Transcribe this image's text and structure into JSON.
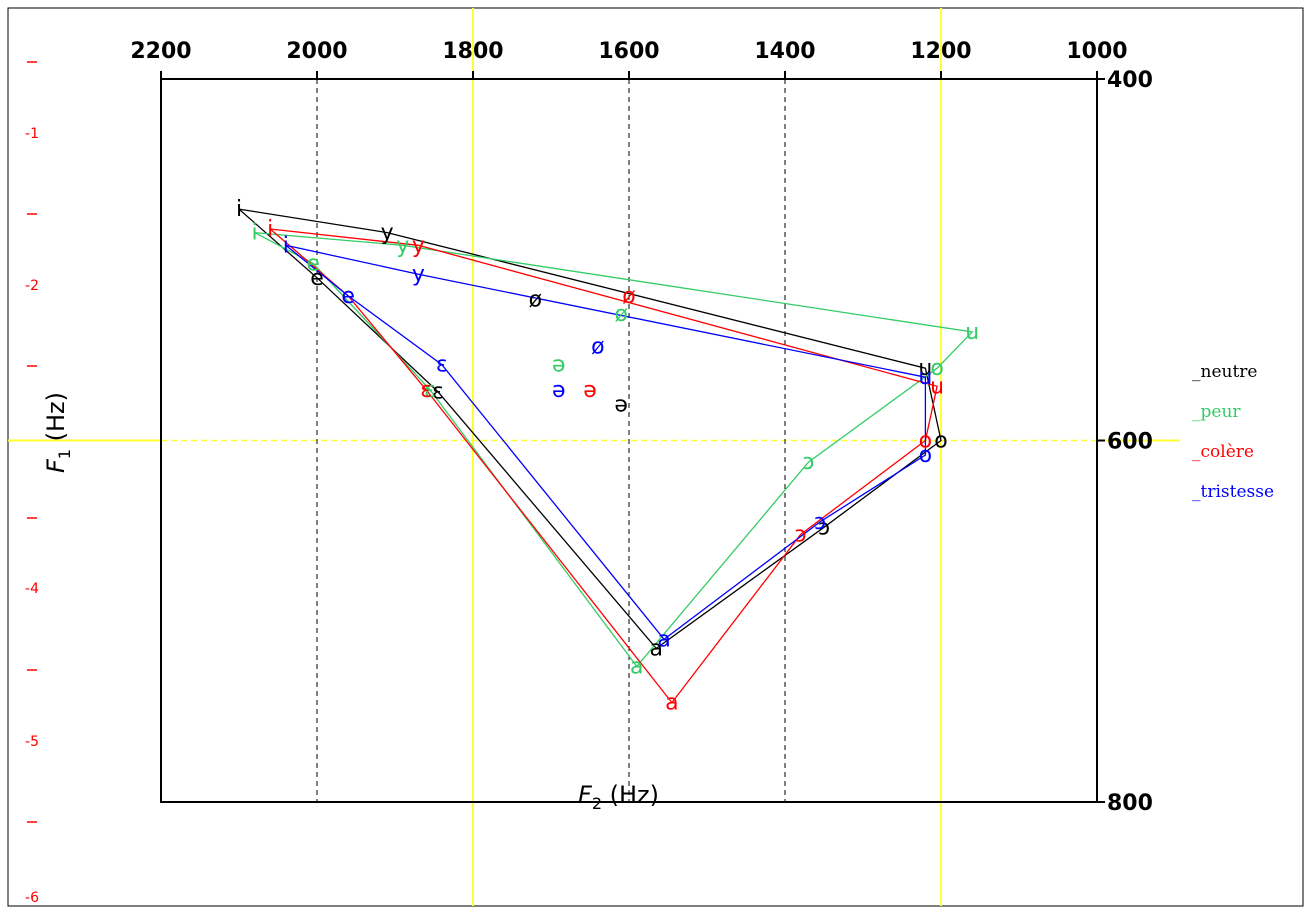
{
  "chart_data": {
    "type": "line",
    "xlabel": "F",
    "xlabel_sub": "2",
    "xlabel_unit": " (Hz)",
    "ylabel": "F",
    "ylabel_sub": "1",
    "ylabel_unit": " (Hz)",
    "xlim": [
      2200,
      1000
    ],
    "ylim": [
      400,
      800
    ],
    "x_ticks": [
      2200,
      2000,
      1800,
      1600,
      1400,
      1200,
      1000
    ],
    "y_ticks": [
      400,
      600,
      800
    ],
    "grid_x_dashed": [
      2000,
      1600,
      1400
    ],
    "crosshair": {
      "x": 1800,
      "x2": 1200,
      "y": 600,
      "color": "#ffff33"
    },
    "left_ruler_labels": [
      "-1",
      "-2",
      "-4",
      "-5",
      "-6"
    ],
    "left_ruler_color": "#ff0000",
    "series": [
      {
        "name": "_neutre",
        "color": "#000000",
        "polygon": [
          {
            "v": "i",
            "x": 2100,
            "y": 472
          },
          {
            "v": "y",
            "x": 1910,
            "y": 485
          },
          {
            "v": "u",
            "x": 1220,
            "y": 560
          },
          {
            "v": "o",
            "x": 1200,
            "y": 600
          },
          {
            "v": "ɔ",
            "x": 1350,
            "y": 648
          },
          {
            "v": "a",
            "x": 1565,
            "y": 715
          },
          {
            "v": "ɛ",
            "x": 1845,
            "y": 573
          },
          {
            "v": "e",
            "x": 2000,
            "y": 510
          },
          {
            "v": "i",
            "x": 2100,
            "y": 472
          }
        ],
        "labels": [
          {
            "v": "ø",
            "x": 1720,
            "y": 522
          },
          {
            "v": "ə",
            "x": 1610,
            "y": 580
          }
        ]
      },
      {
        "name": "_peur",
        "color": "#33cc66",
        "polygon": [
          {
            "v": "i",
            "x": 2080,
            "y": 485
          },
          {
            "v": "y",
            "x": 1890,
            "y": 492
          },
          {
            "v": "u",
            "x": 1160,
            "y": 540
          },
          {
            "v": "o",
            "x": 1205,
            "y": 560
          },
          {
            "v": "ɔ",
            "x": 1370,
            "y": 612
          },
          {
            "v": "a",
            "x": 1590,
            "y": 725
          },
          {
            "v": "ɛ",
            "x": 1855,
            "y": 572
          },
          {
            "v": "e",
            "x": 2005,
            "y": 502
          },
          {
            "v": "i",
            "x": 2080,
            "y": 485
          }
        ],
        "labels": [
          {
            "v": "ø",
            "x": 1610,
            "y": 530
          },
          {
            "v": "ə",
            "x": 1690,
            "y": 558
          }
        ]
      },
      {
        "name": "_colère",
        "color": "#ff0000",
        "polygon": [
          {
            "v": "i",
            "x": 2060,
            "y": 483
          },
          {
            "v": "y",
            "x": 1870,
            "y": 492
          },
          {
            "v": "u",
            "x": 1205,
            "y": 570
          },
          {
            "v": "o",
            "x": 1220,
            "y": 600
          },
          {
            "v": "ɔ",
            "x": 1380,
            "y": 652
          },
          {
            "v": "a",
            "x": 1545,
            "y": 745
          },
          {
            "v": "ɛ",
            "x": 1860,
            "y": 572
          },
          {
            "v": "e",
            "x": 1960,
            "y": 520
          },
          {
            "v": "i",
            "x": 2060,
            "y": 483
          }
        ],
        "labels": [
          {
            "v": "ø",
            "x": 1600,
            "y": 520
          },
          {
            "v": "ə",
            "x": 1650,
            "y": 572
          }
        ]
      },
      {
        "name": "_tristesse",
        "color": "#0000ff",
        "polygon": [
          {
            "v": "i",
            "x": 2040,
            "y": 492
          },
          {
            "v": "y",
            "x": 1870,
            "y": 508
          },
          {
            "v": "u",
            "x": 1220,
            "y": 565
          },
          {
            "v": "o",
            "x": 1220,
            "y": 608
          },
          {
            "v": "ɔ",
            "x": 1355,
            "y": 645
          },
          {
            "v": "a",
            "x": 1555,
            "y": 710
          },
          {
            "v": "ɛ",
            "x": 1840,
            "y": 558
          },
          {
            "v": "e",
            "x": 1960,
            "y": 520
          },
          {
            "v": "i",
            "x": 2040,
            "y": 492
          }
        ],
        "labels": [
          {
            "v": "ø",
            "x": 1640,
            "y": 548
          },
          {
            "v": "ə",
            "x": 1690,
            "y": 572
          }
        ]
      }
    ]
  }
}
